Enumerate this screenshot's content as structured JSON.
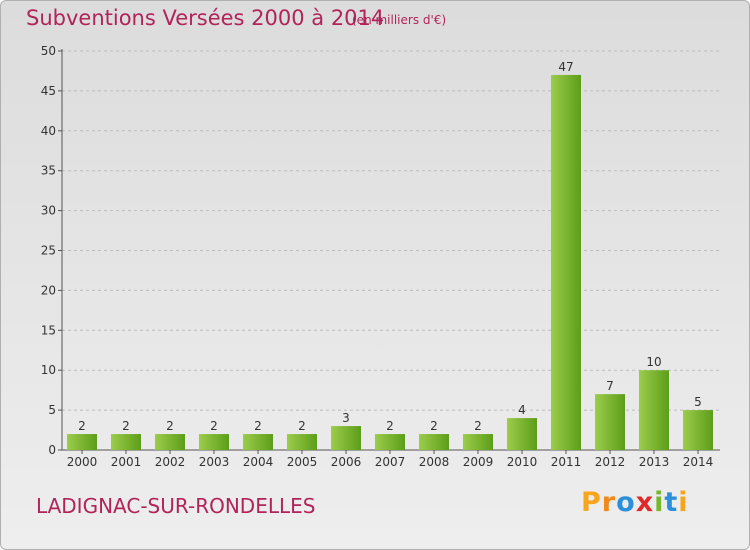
{
  "header": {
    "title": "Subventions Versées 2000 à 2014",
    "unit_note": "(en milliers d'€)"
  },
  "footer": {
    "commune": "LADIGNAC-SUR-RONDELLES",
    "logo_letters": [
      "P",
      "r",
      "o",
      "x",
      "i",
      "t",
      "i"
    ],
    "logo_colors": [
      "#f7a51d",
      "#f18a1a",
      "#2b8fd9",
      "#e02a2a",
      "#76b82a",
      "#2b8fd9",
      "#f7a51d"
    ]
  },
  "colors": {
    "text": "#b0245a",
    "bar_light": "#9ccc4c",
    "bar_dark": "#5c9e19",
    "grid": "#bdbdbd"
  },
  "chart_data": {
    "type": "bar",
    "title": "Subventions Versées 2000 à 2014",
    "subtitle": "(en milliers d'€)",
    "categories": [
      "2000",
      "2001",
      "2002",
      "2003",
      "2004",
      "2005",
      "2006",
      "2007",
      "2008",
      "2009",
      "2010",
      "2011",
      "2012",
      "2013",
      "2014"
    ],
    "values": [
      2,
      2,
      2,
      2,
      2,
      2,
      3,
      2,
      2,
      2,
      4,
      47,
      7,
      10,
      5
    ],
    "ylim": [
      0,
      50
    ],
    "yticks": [
      0,
      5,
      10,
      15,
      20,
      25,
      30,
      35,
      40,
      45,
      50
    ],
    "grid": true,
    "data_labels": true
  }
}
